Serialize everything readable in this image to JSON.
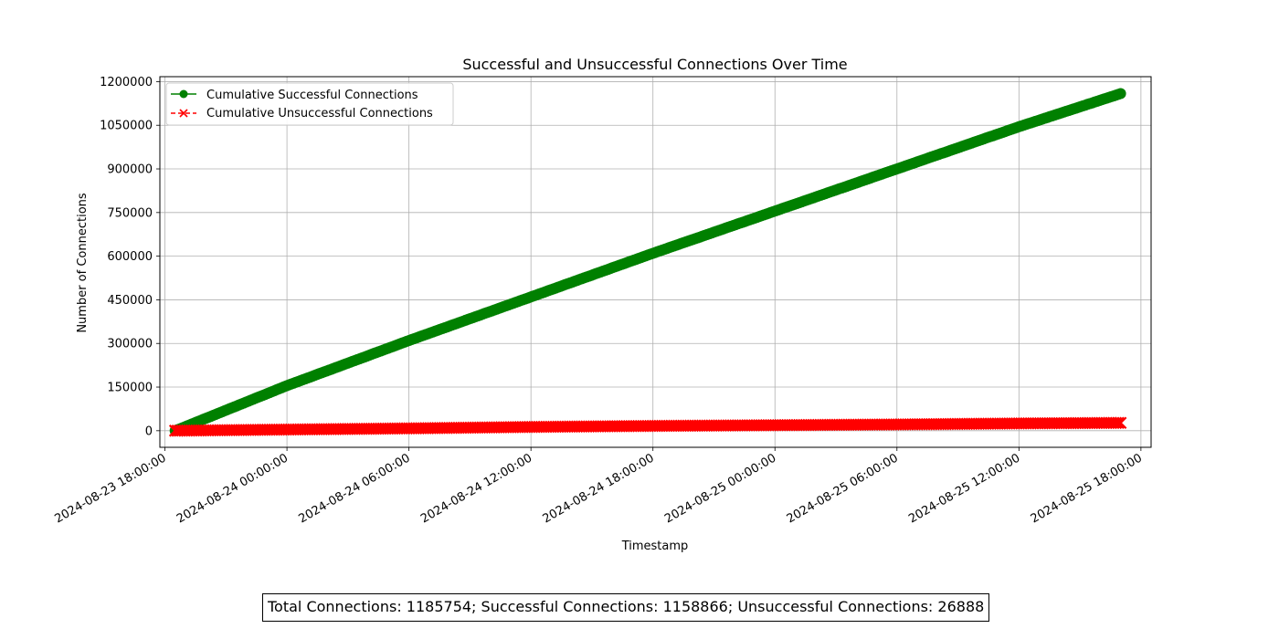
{
  "chart_data": {
    "type": "line",
    "title": "Successful and Unsuccessful Connections Over Time",
    "xlabel": "Timestamp",
    "ylabel": "Number of Connections",
    "x_ticks": [
      "2024-08-23 18:00:00",
      "2024-08-24 00:00:00",
      "2024-08-24 06:00:00",
      "2024-08-24 12:00:00",
      "2024-08-24 18:00:00",
      "2024-08-25 00:00:00",
      "2024-08-25 06:00:00",
      "2024-08-25 12:00:00",
      "2024-08-25 18:00:00"
    ],
    "y_ticks": [
      0,
      150000,
      300000,
      450000,
      600000,
      750000,
      900000,
      1050000,
      1200000
    ],
    "xlim": [
      "2024-08-23 17:45:00",
      "2024-08-25 18:30:00"
    ],
    "ylim": [
      -57000,
      1217000
    ],
    "grid": true,
    "legend_position": "top-left",
    "series": [
      {
        "name": "Cumulative Successful Connections",
        "color": "#008000",
        "marker": "circle",
        "linestyle": "solid",
        "x": [
          "2024-08-23 18:30:00",
          "2024-08-24 00:00:00",
          "2024-08-24 06:00:00",
          "2024-08-24 12:00:00",
          "2024-08-24 18:00:00",
          "2024-08-25 00:00:00",
          "2024-08-25 06:00:00",
          "2024-08-25 12:00:00",
          "2024-08-25 17:00:00"
        ],
        "values": [
          0,
          155000,
          310000,
          460000,
          610000,
          755000,
          900000,
          1045000,
          1158866
        ]
      },
      {
        "name": "Cumulative Unsuccessful Connections",
        "color": "#ff0000",
        "marker": "x",
        "linestyle": "dashed",
        "x": [
          "2024-08-23 18:30:00",
          "2024-08-24 00:00:00",
          "2024-08-24 06:00:00",
          "2024-08-24 12:00:00",
          "2024-08-24 18:00:00",
          "2024-08-25 00:00:00",
          "2024-08-25 06:00:00",
          "2024-08-25 12:00:00",
          "2024-08-25 17:00:00"
        ],
        "values": [
          0,
          4000,
          8000,
          13000,
          16500,
          19000,
          21500,
          25000,
          26888
        ]
      }
    ]
  },
  "footer": {
    "summary": "Total Connections: 1185754; Successful Connections: 1158866; Unsuccessful Connections: 26888"
  }
}
